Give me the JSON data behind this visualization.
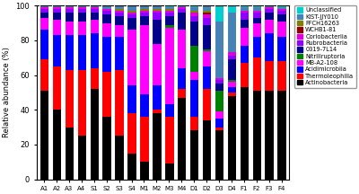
{
  "categories": [
    "A1",
    "A2",
    "A3",
    "A4",
    "S1",
    "S2",
    "S3",
    "S4",
    "M1",
    "M2",
    "M3",
    "M4",
    "D1",
    "D2",
    "D3",
    "D4",
    "F1",
    "F2",
    "F3",
    "F4"
  ],
  "layers": {
    "Actinobacteria": [
      51,
      40,
      30,
      25,
      52,
      36,
      25,
      15,
      10,
      38,
      9,
      47,
      28,
      34,
      28,
      48,
      53,
      51,
      51,
      51
    ],
    "Thermoleophilia": [
      18,
      25,
      33,
      38,
      12,
      26,
      38,
      23,
      26,
      2,
      27,
      5,
      8,
      18,
      2,
      2,
      14,
      19,
      17,
      17
    ],
    "Acidimicrobiia": [
      17,
      18,
      20,
      20,
      20,
      20,
      19,
      16,
      13,
      14,
      7,
      12,
      21,
      13,
      5,
      3,
      10,
      12,
      16,
      14
    ],
    "MB-A2-108": [
      7,
      9,
      8,
      8,
      8,
      8,
      7,
      32,
      40,
      24,
      44,
      22,
      5,
      9,
      4,
      3,
      10,
      8,
      8,
      9
    ],
    "Nitriliruptoria": [
      0,
      0,
      0,
      0,
      0,
      0,
      0,
      0,
      0,
      0,
      2,
      0,
      15,
      1,
      12,
      1,
      0,
      0,
      0,
      0
    ],
    "0319-7L14": [
      3,
      4,
      5,
      5,
      4,
      5,
      5,
      7,
      5,
      14,
      5,
      10,
      14,
      14,
      4,
      12,
      5,
      3,
      4,
      4
    ],
    "Rubrobacteria": [
      2,
      2,
      2,
      2,
      2,
      2,
      2,
      2,
      2,
      4,
      2,
      2,
      3,
      4,
      2,
      2,
      4,
      3,
      2,
      2
    ],
    "Coriobacteriia": [
      1,
      1,
      1,
      1,
      1,
      1,
      1,
      1,
      1,
      1,
      1,
      1,
      2,
      2,
      1,
      2,
      1,
      1,
      1,
      1
    ],
    "WCHB1-81": [
      0,
      0,
      0,
      0,
      0,
      0,
      0,
      0,
      0,
      0,
      0,
      0,
      0,
      1,
      0,
      0,
      0,
      0,
      0,
      0
    ],
    "FFCH16263": [
      0,
      0,
      0,
      0,
      0,
      0,
      1,
      1,
      1,
      1,
      1,
      0,
      1,
      1,
      0,
      0,
      0,
      0,
      0,
      0
    ],
    "KIST-JJY010": [
      1,
      1,
      1,
      1,
      1,
      2,
      2,
      3,
      2,
      2,
      1,
      1,
      2,
      3,
      33,
      23,
      2,
      2,
      1,
      1
    ],
    "Unclassified": [
      0,
      0,
      0,
      0,
      0,
      0,
      0,
      0,
      0,
      0,
      1,
      0,
      1,
      0,
      9,
      4,
      1,
      1,
      0,
      1
    ]
  },
  "colors": {
    "Actinobacteria": "#000000",
    "Thermoleophilia": "#FF0000",
    "Acidimicrobiia": "#0000FF",
    "MB-A2-108": "#FF00FF",
    "Nitriliruptoria": "#008000",
    "0319-7L14": "#00008B",
    "Rubrobacteria": "#8B00FF",
    "Coriobacteriia": "#DD00DD",
    "WCHB1-81": "#8B0000",
    "FFCH16263": "#808000",
    "KIST-JJY010": "#4682B4",
    "Unclassified": "#00CED1"
  },
  "legend_order": [
    "Unclassified",
    "KIST-JJY010",
    "FFCH16263",
    "WCHB1-81",
    "Coriobacteriia",
    "Rubrobacteria",
    "0319-7L14",
    "Nitriliruptoria",
    "MB-A2-108",
    "Acidimicrobiia",
    "Thermoleophilia",
    "Actinobacteria"
  ],
  "layer_order": [
    "Actinobacteria",
    "Thermoleophilia",
    "Acidimicrobiia",
    "MB-A2-108",
    "Nitriliruptoria",
    "0319-7L14",
    "Rubrobacteria",
    "Coriobacteriia",
    "WCHB1-81",
    "FFCH16263",
    "KIST-JJY010",
    "Unclassified"
  ],
  "ylabel": "Relative abundance (%)",
  "ylim": [
    0,
    100
  ],
  "bar_width": 0.75,
  "figsize": [
    4.0,
    2.16
  ],
  "dpi": 100
}
